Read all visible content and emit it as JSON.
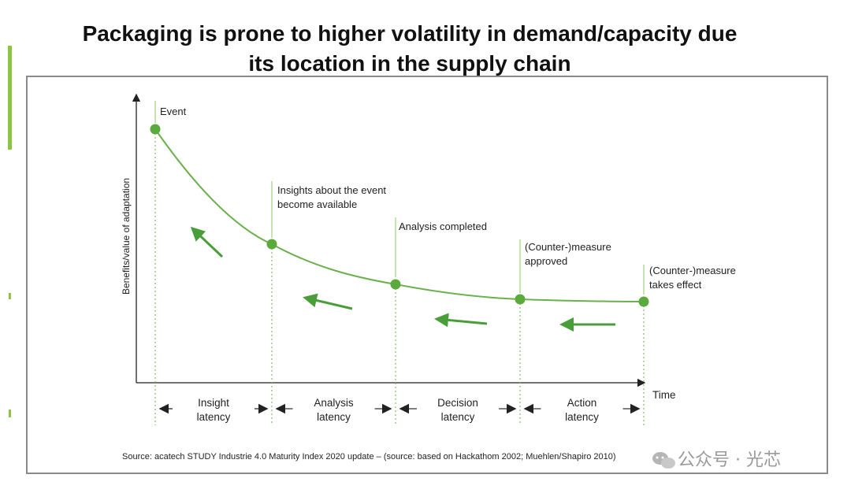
{
  "title": "Packaging is prone to higher volatility  in demand/capacity  due its location  in the supply  chain",
  "title_line1": "Packaging is prone to higher volatility  in demand/capacity  due",
  "title_line2": "its location  in the supply  chain",
  "accent_color": "#6ab04c",
  "chart_data": {
    "type": "line",
    "ylabel": "Benefits/value of adaptation",
    "xlabel": "Time",
    "events": [
      {
        "label_lines": [
          "Event"
        ]
      },
      {
        "label_lines": [
          "Insights about the event",
          "become available"
        ]
      },
      {
        "label_lines": [
          "Analysis completed"
        ]
      },
      {
        "label_lines": [
          "(Counter-)measure",
          "approved"
        ]
      },
      {
        "label_lines": [
          "(Counter-)measure",
          "takes effect"
        ]
      }
    ],
    "latencies": [
      {
        "line1": "Insight",
        "line2": "latency"
      },
      {
        "line1": "Analysis",
        "line2": "latency"
      },
      {
        "line1": "Decision",
        "line2": "latency"
      },
      {
        "line1": "Action",
        "line2": "latency"
      }
    ],
    "source": "Source: acatech STUDY Industrie 4.0 Maturity Index 2020 update – (source: based on Hackathom 2002; Muehlen/Shapiro 2010)"
  },
  "watermark": {
    "icon": "wechat-icon",
    "text": "公众号 · 光芯"
  }
}
